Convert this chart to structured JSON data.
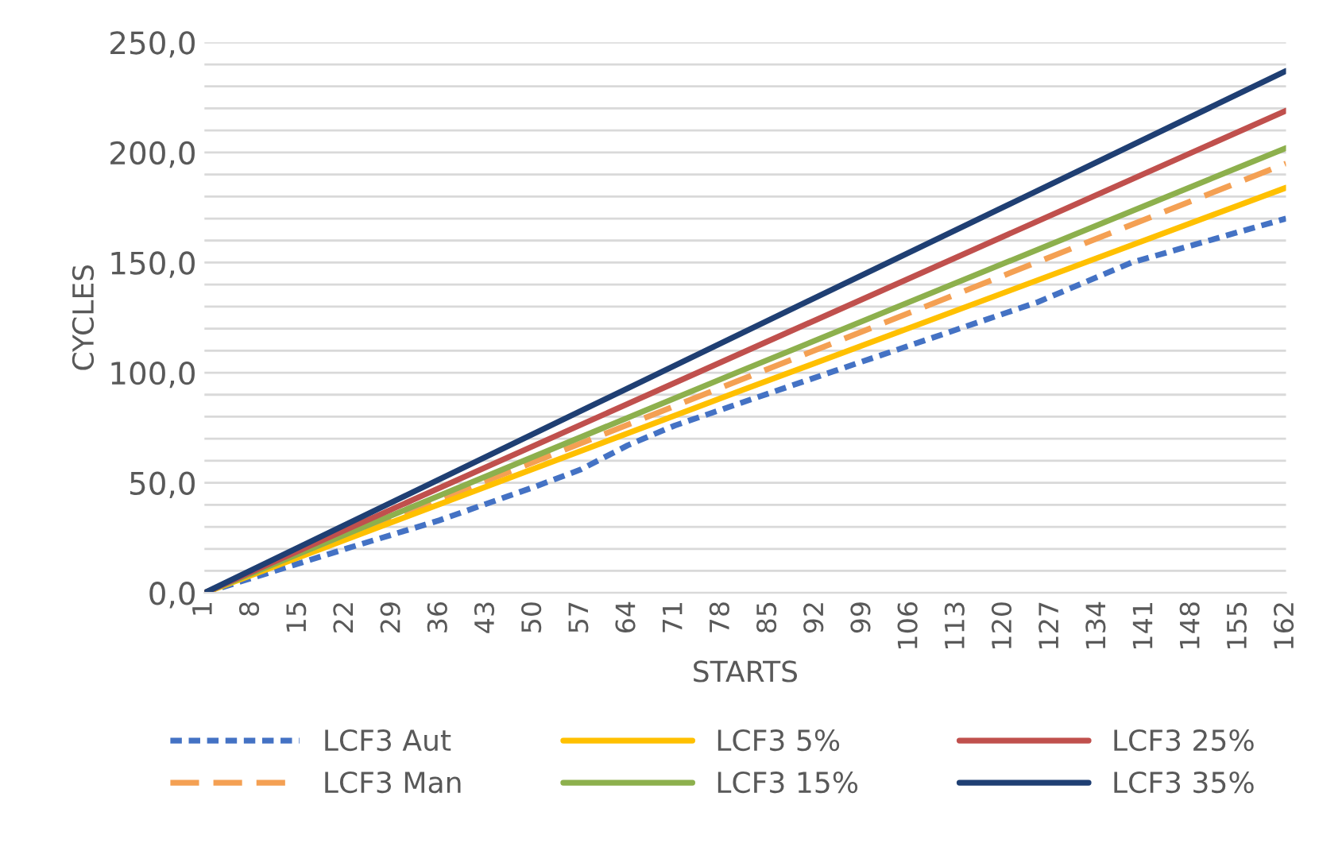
{
  "chart_data": {
    "type": "line",
    "xlabel": "STARTS",
    "ylabel": "CYCLES",
    "xlim": [
      1,
      162
    ],
    "xticks": [
      1,
      8,
      15,
      22,
      29,
      36,
      43,
      50,
      57,
      64,
      71,
      78,
      85,
      92,
      99,
      106,
      113,
      120,
      127,
      134,
      141,
      148,
      155,
      162
    ],
    "ylim": [
      0,
      250
    ],
    "yticks": [
      {
        "value": 0,
        "label": "0,0"
      },
      {
        "value": 10,
        "label": null
      },
      {
        "value": 20,
        "label": null
      },
      {
        "value": 30,
        "label": null
      },
      {
        "value": 40,
        "label": null
      },
      {
        "value": 50,
        "label": "50,0"
      },
      {
        "value": 60,
        "label": null
      },
      {
        "value": 70,
        "label": null
      },
      {
        "value": 80,
        "label": null
      },
      {
        "value": 90,
        "label": null
      },
      {
        "value": 100,
        "label": "100,0"
      },
      {
        "value": 110,
        "label": null
      },
      {
        "value": 120,
        "label": null
      },
      {
        "value": 130,
        "label": null
      },
      {
        "value": 140,
        "label": null
      },
      {
        "value": 150,
        "label": "150,0"
      },
      {
        "value": 160,
        "label": null
      },
      {
        "value": 170,
        "label": null
      },
      {
        "value": 180,
        "label": null
      },
      {
        "value": 190,
        "label": null
      },
      {
        "value": 200,
        "label": "200,0"
      },
      {
        "value": 210,
        "label": null
      },
      {
        "value": 220,
        "label": null
      },
      {
        "value": 230,
        "label": null
      },
      {
        "value": 240,
        "label": null
      },
      {
        "value": 250,
        "label": "250,0"
      }
    ],
    "grid": "y",
    "legend": "bottom",
    "marker": "none",
    "series": [
      {
        "name": "LCF3 Aut",
        "color": "#4472c4",
        "line_style": "dotted",
        "x": [
          1,
          22,
          36,
          50,
          57,
          64,
          71,
          95,
          125,
          139,
          162
        ],
        "values": [
          0,
          20,
          33,
          48,
          56,
          67,
          76,
          101,
          132,
          150,
          170
        ]
      },
      {
        "name": "LCF3 Man",
        "color": "#f4a053",
        "line_style": "dashed",
        "x": [
          1,
          81,
          162
        ],
        "values": [
          0,
          97,
          195
        ]
      },
      {
        "name": "LCF3 5%",
        "color": "#ffc000",
        "line_style": "solid",
        "x": [
          1,
          81,
          162
        ],
        "values": [
          0,
          92,
          184
        ]
      },
      {
        "name": "LCF3 15%",
        "color": "#8db04d",
        "line_style": "solid",
        "x": [
          1,
          81,
          162
        ],
        "values": [
          0,
          101,
          202
        ]
      },
      {
        "name": "LCF3 25%",
        "color": "#c0504d",
        "line_style": "solid",
        "x": [
          1,
          81,
          162
        ],
        "values": [
          0,
          109,
          219
        ]
      },
      {
        "name": "LCF3 35%",
        "color": "#1f3f73",
        "line_style": "solid",
        "x": [
          1,
          81,
          162
        ],
        "values": [
          0,
          118,
          237
        ]
      }
    ]
  }
}
